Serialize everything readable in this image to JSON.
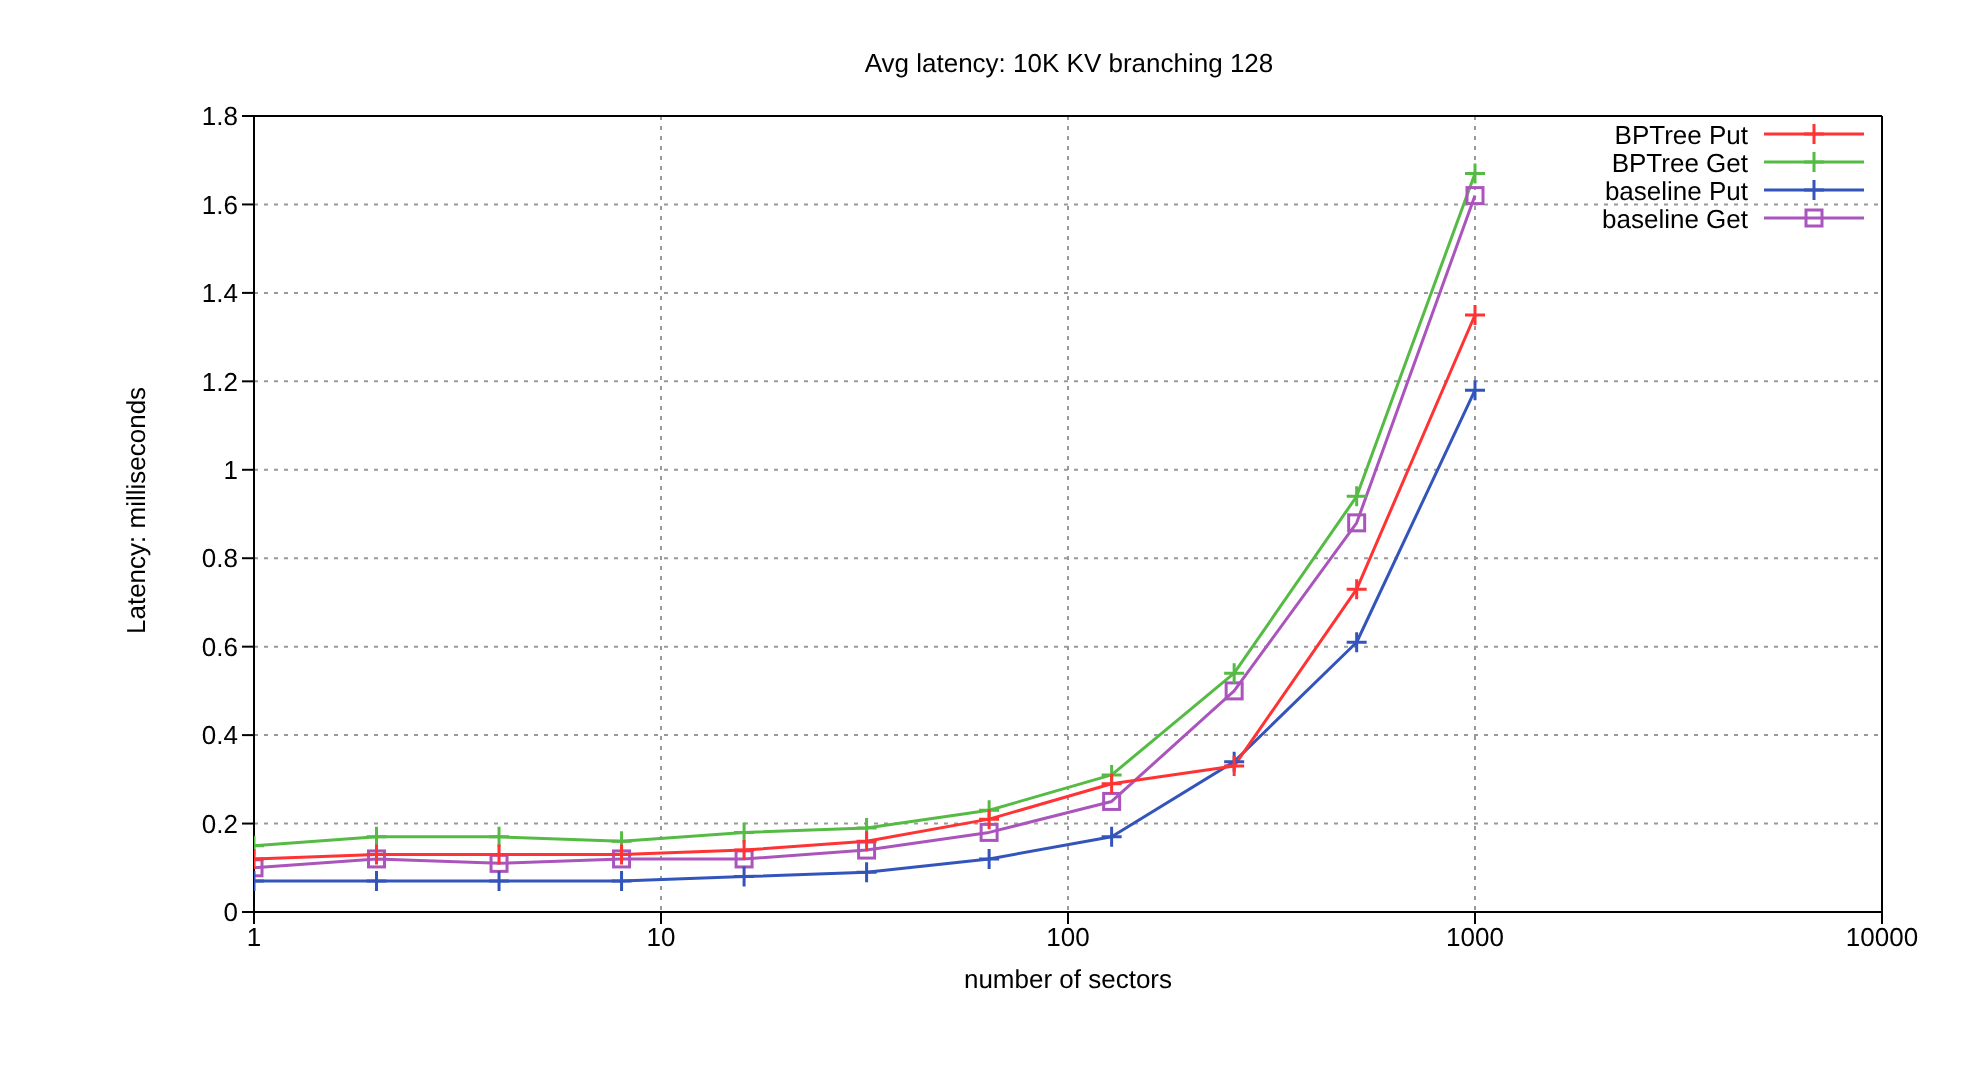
{
  "chart_data": {
    "type": "line",
    "title": "Avg latency: 10K KV branching 128",
    "xlabel": "number of sectors",
    "ylabel": "Latency: milliseconds",
    "x": [
      1,
      2,
      4,
      8,
      16,
      32,
      64,
      128,
      256,
      512,
      1000
    ],
    "series": [
      {
        "name": "BPTree Put",
        "color": "#ff3333",
        "marker": "cross",
        "values": [
          0.12,
          0.13,
          0.13,
          0.13,
          0.14,
          0.16,
          0.21,
          0.29,
          0.33,
          0.73,
          1.35
        ]
      },
      {
        "name": "BPTree Get",
        "color": "#55bb44",
        "marker": "cross",
        "values": [
          0.15,
          0.17,
          0.17,
          0.16,
          0.18,
          0.19,
          0.23,
          0.31,
          0.54,
          0.94,
          1.67
        ]
      },
      {
        "name": "baseline Put",
        "color": "#3355bb",
        "marker": "cross",
        "values": [
          0.07,
          0.07,
          0.07,
          0.07,
          0.08,
          0.09,
          0.12,
          0.17,
          0.34,
          0.61,
          1.18
        ]
      },
      {
        "name": "baseline Get",
        "color": "#aa55bb",
        "marker": "square",
        "values": [
          0.1,
          0.12,
          0.11,
          0.12,
          0.12,
          0.14,
          0.18,
          0.25,
          0.5,
          0.88,
          1.62
        ]
      }
    ],
    "log": "x",
    "xlim": [
      1,
      10000
    ],
    "xticks": [
      1,
      10,
      100,
      1000,
      10000
    ],
    "ylim": [
      0,
      1.8
    ],
    "yticks": [
      0,
      0.2,
      0.4,
      0.6,
      0.8,
      1,
      1.2,
      1.4,
      1.6,
      1.8
    ],
    "grid": true,
    "legend": "top right",
    "line_style": "solid"
  }
}
